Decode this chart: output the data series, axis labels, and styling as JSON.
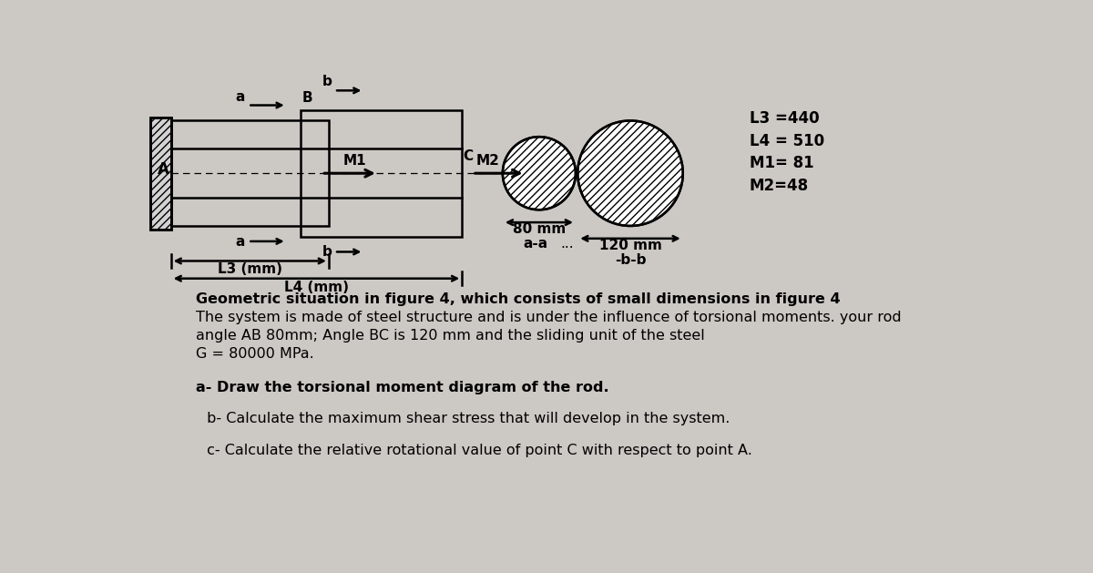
{
  "bg_color": "#ccc8c4",
  "title_text": "Geometric situation in figure 4, which consists of small dimensions in figure 4",
  "line1": "The system is made of steel structure and is under the influence of torsional moments. your rod",
  "line2": "angle AB 80mm; Angle BC is 120 mm and the sliding unit of the steel",
  "line3": "G = 80000 MPa.",
  "q_a": "a- Draw the torsional moment diagram of the rod.",
  "q_b": " b- Calculate the maximum shear stress that will develop in the system.",
  "q_c": " c- Calculate the relative rotational value of point C with respect to point A.",
  "params": [
    "L3 =440",
    "L4 = 510",
    "M1= 81",
    "M2=48"
  ],
  "label_L3": "L3 (mm)",
  "label_L4": "L4 (mm)",
  "label_80mm": "80 mm",
  "label_120mm": "120 mm",
  "label_aa": "a-a",
  "label_bb": "-b-b",
  "label_A": "A",
  "label_B": "B",
  "label_M1": "M1",
  "label_M2": "M2",
  "label_C": "C",
  "wall_hatch": "////",
  "circle_hatch": "////"
}
